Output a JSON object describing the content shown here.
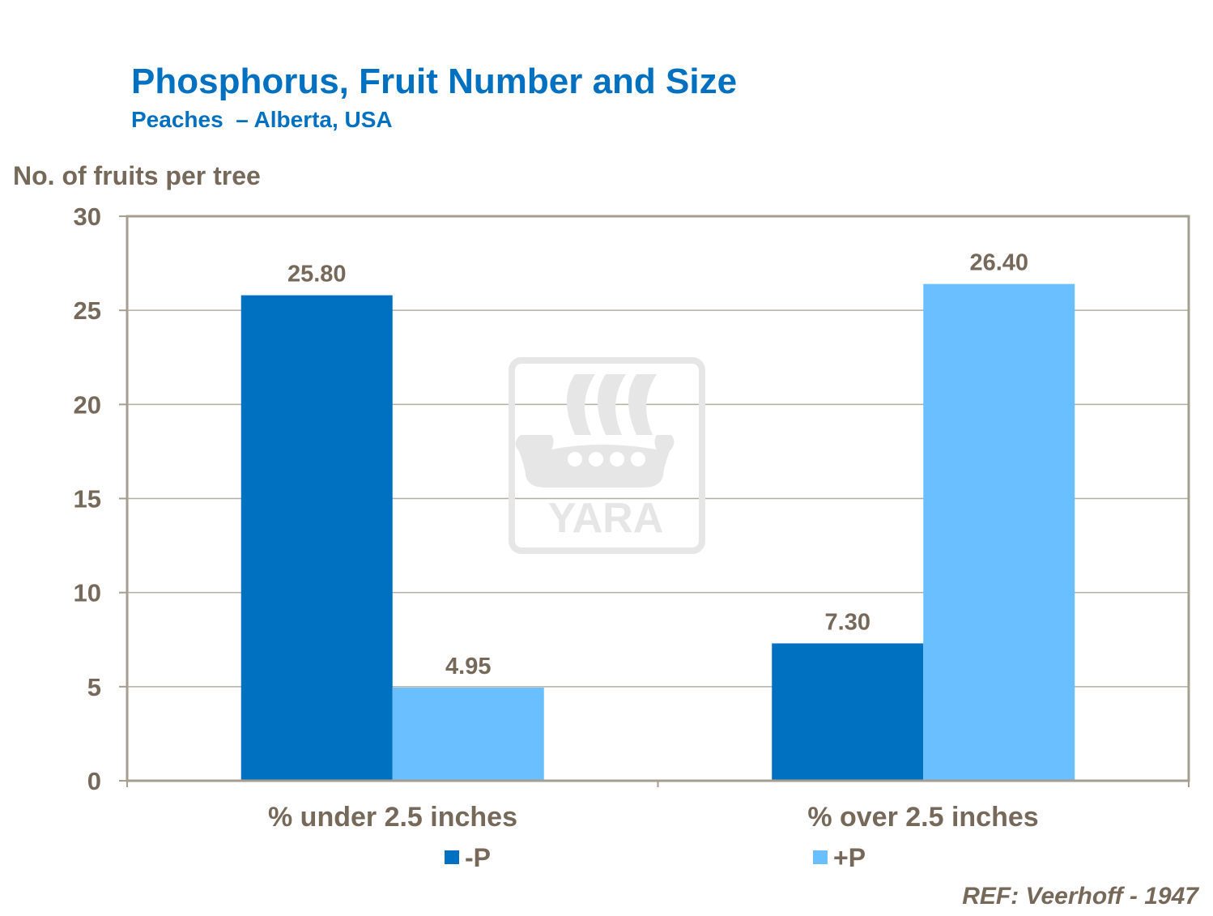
{
  "chart_data": {
    "type": "bar",
    "title": "Phosphorus, Fruit Number and Size",
    "subtitle": "Peaches  – Alberta, USA",
    "ylabel": "No. of fruits per tree",
    "xlabel": "",
    "ylim": [
      0,
      30
    ],
    "yticks": [
      "0",
      "5",
      "10",
      "15",
      "20",
      "25",
      "30"
    ],
    "grid": true,
    "categories": [
      "% under 2.5 inches",
      "% over 2.5 inches"
    ],
    "series": [
      {
        "name": "-P",
        "values": [
          25.8,
          7.3
        ],
        "labels": [
          "25.80",
          "7.30"
        ],
        "color": "#0070c0"
      },
      {
        "name": "+P",
        "values": [
          4.95,
          26.4
        ],
        "labels": [
          "4.95",
          "26.40"
        ],
        "color": "#69bfff"
      }
    ],
    "legend_placement": "bottom",
    "reference": "REF: Veerhoff - 1947",
    "watermark": "YARA",
    "colors": {
      "title": "#0070c0",
      "text": "#76695a",
      "grid": "#b5ada2",
      "axis": "#a89e90"
    }
  }
}
